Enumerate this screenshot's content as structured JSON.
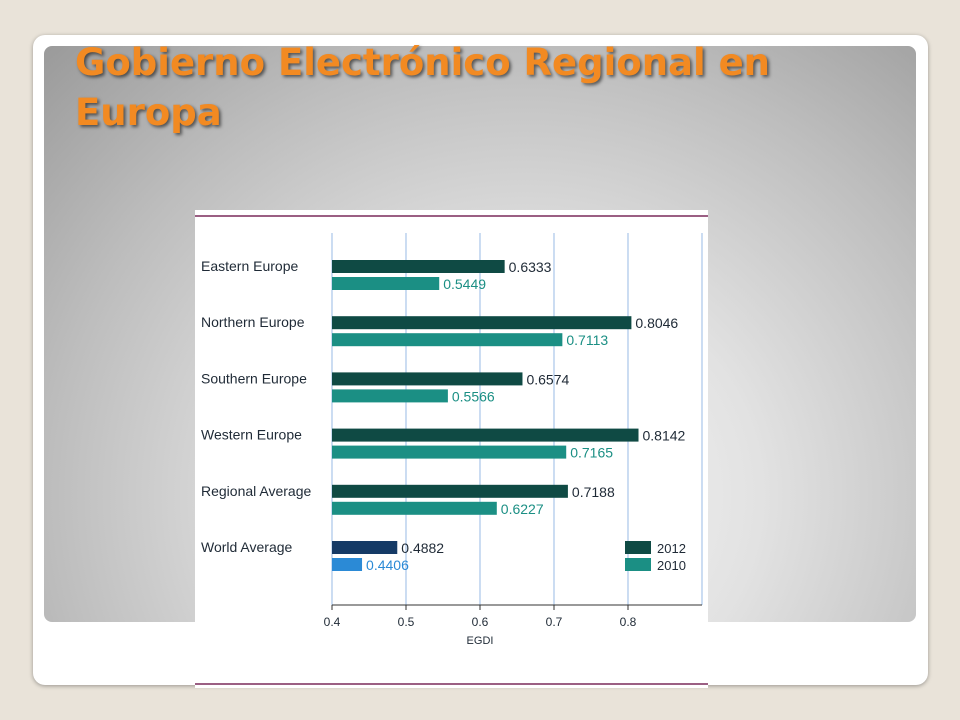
{
  "slide": {
    "title": "Gobierno Electrónico Regional en Europa"
  },
  "colors": {
    "title": "#f28a22",
    "series_2012": "#0f4a44",
    "series_2010": "#1b8f84",
    "world_2012": "#153a66",
    "world_2010": "#2b8ad6",
    "frame_line": "#7a2a5a",
    "grid": "#a9c6e8"
  },
  "chart_data": {
    "type": "bar",
    "orientation": "horizontal",
    "categories": [
      "Eastern Europe",
      "Northern Europe",
      "Southern Europe",
      "Western Europe",
      "Regional Average",
      "World Average"
    ],
    "series": [
      {
        "name": "2012",
        "values": [
          0.6333,
          0.8046,
          0.6574,
          0.8142,
          0.7188,
          0.4882
        ]
      },
      {
        "name": "2010",
        "values": [
          0.5449,
          0.7113,
          0.5566,
          0.7165,
          0.6227,
          0.4406
        ]
      }
    ],
    "value_labels": [
      [
        "0.6333",
        "0.8046",
        "0.6574",
        "0.8142",
        "0.7188",
        "0.4882"
      ],
      [
        "0.5449",
        "0.7113",
        "0.5566",
        "0.7165",
        "0.6227",
        "0.4406"
      ]
    ],
    "xlabel": "EGDI",
    "xlim": [
      0.4,
      0.9
    ],
    "xticks": [
      0.4,
      0.5,
      0.6,
      0.7,
      0.8
    ],
    "xtick_labels": [
      "0.4",
      "0.5",
      "0.6",
      "0.7",
      "0.8"
    ],
    "grid": true,
    "legend": {
      "placement": "bottom-right",
      "entries": [
        "2012",
        "2010"
      ]
    }
  }
}
